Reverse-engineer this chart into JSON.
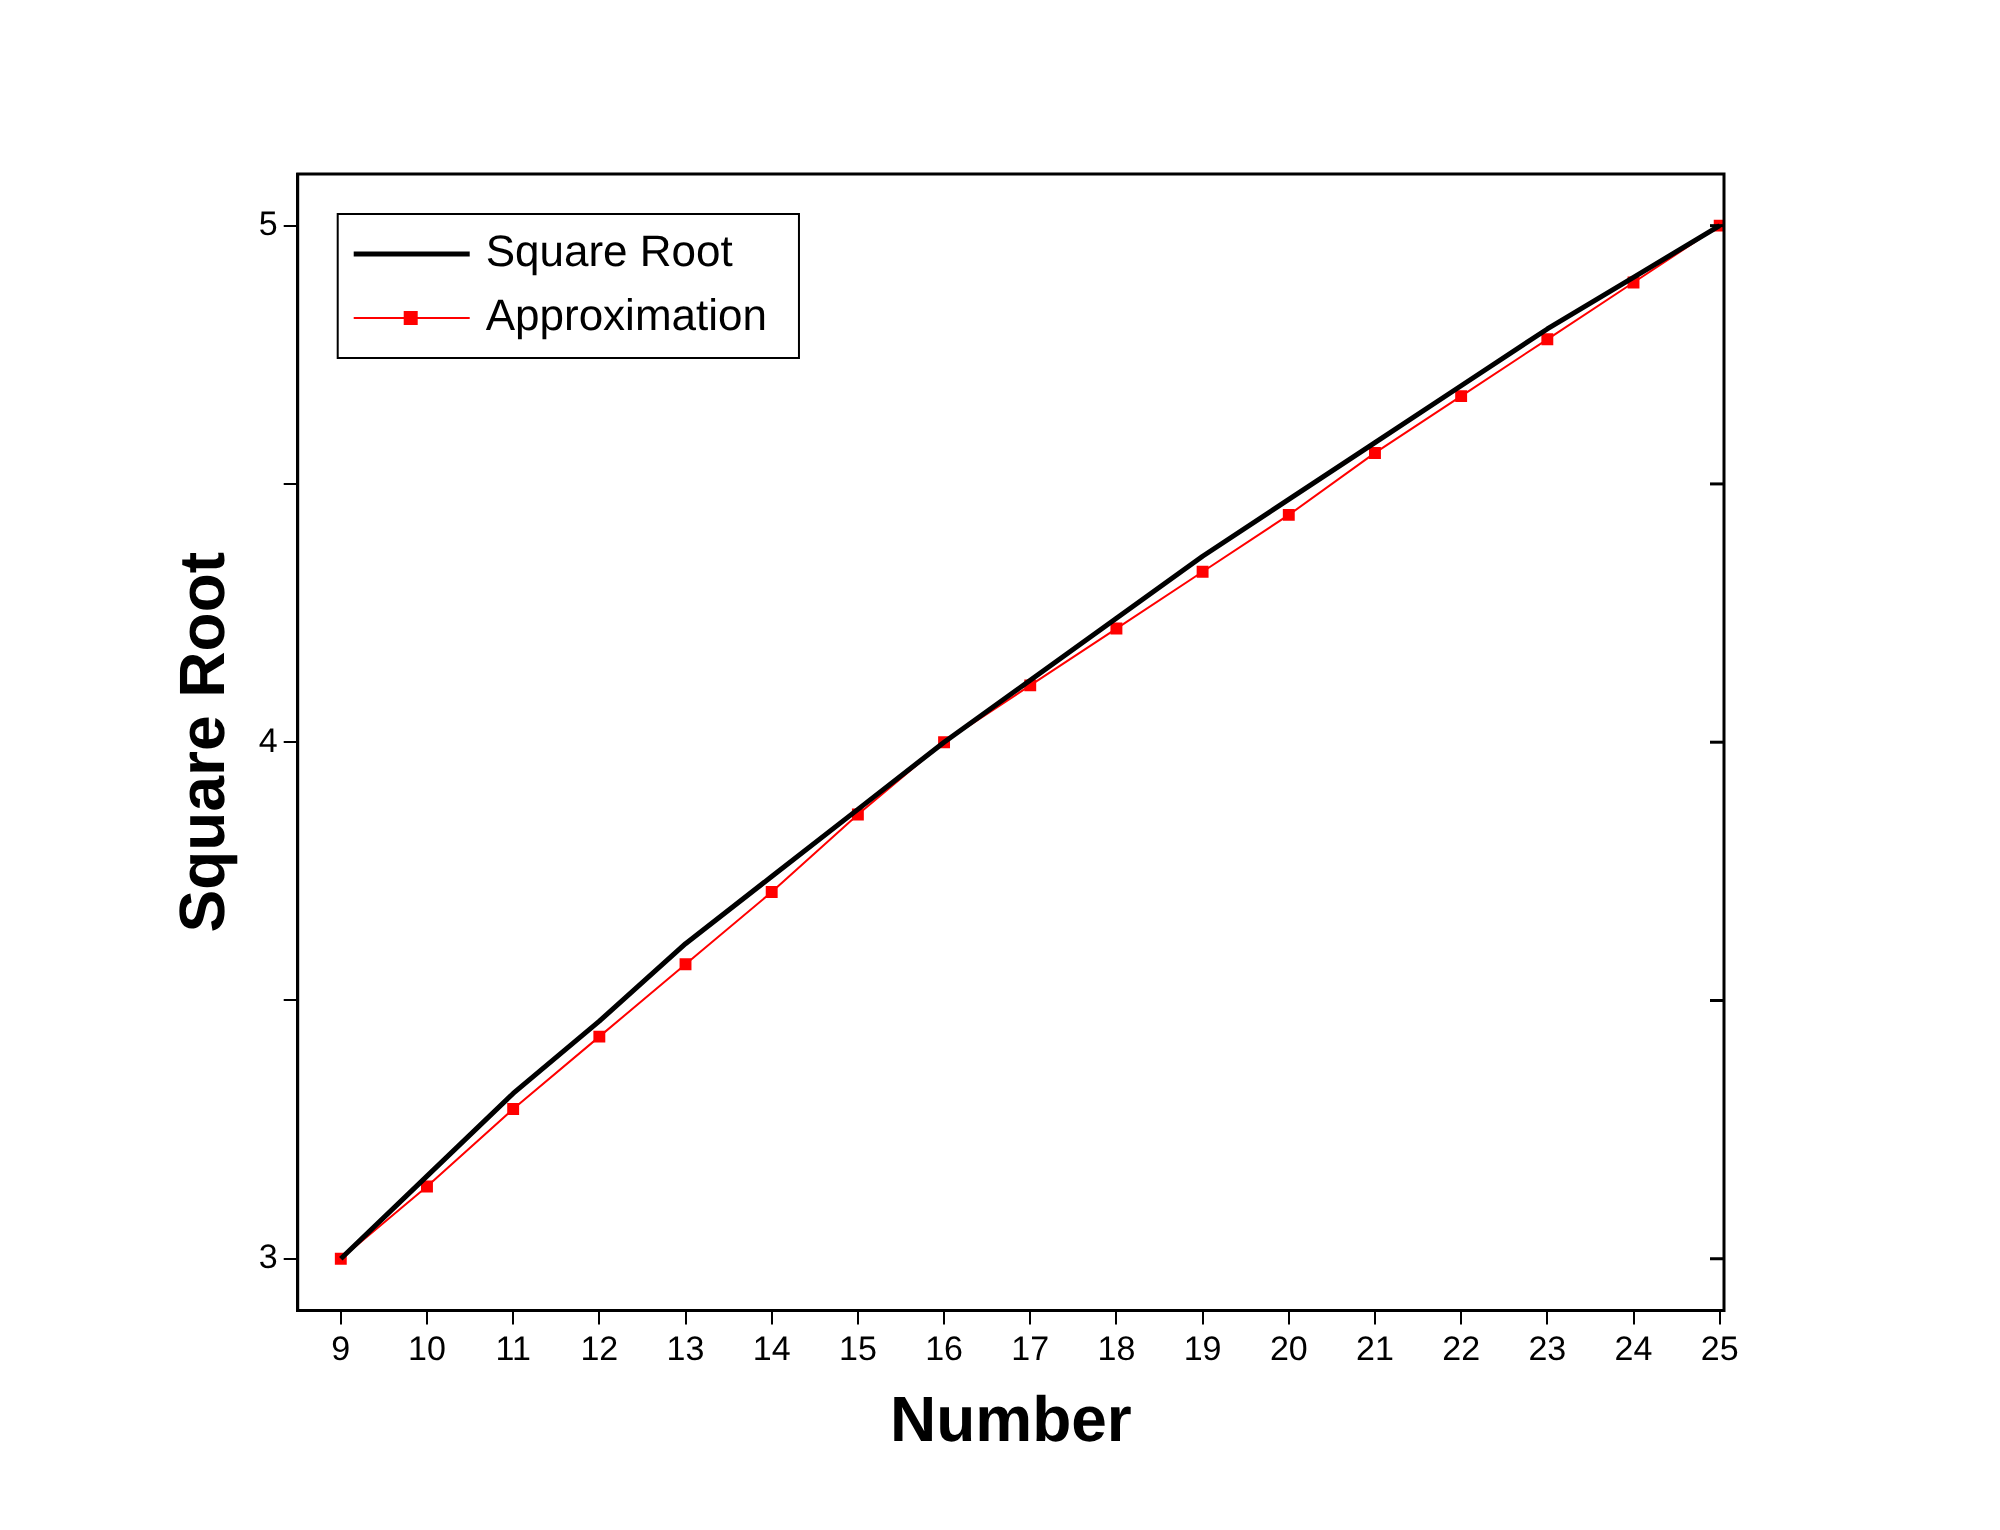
{
  "chart_data": {
    "type": "line",
    "xlabel": "Number",
    "ylabel": "Square Root",
    "x": [
      9,
      10,
      11,
      12,
      13,
      14,
      15,
      16,
      17,
      18,
      19,
      20,
      21,
      22,
      23,
      24,
      25
    ],
    "series": [
      {
        "name": "Square Root",
        "color": "#000000",
        "marker": "none",
        "values": [
          3,
          3.16,
          3.32,
          3.46,
          3.61,
          3.74,
          3.87,
          4,
          4.12,
          4.24,
          4.36,
          4.47,
          4.58,
          4.69,
          4.8,
          4.9,
          5
        ]
      },
      {
        "name": "Approximation",
        "color": "#ff0000",
        "marker": "square",
        "values": [
          3,
          3.14,
          3.29,
          3.43,
          3.57,
          3.71,
          3.86,
          4,
          4.11,
          4.22,
          4.33,
          4.44,
          4.56,
          4.67,
          4.78,
          4.89,
          5
        ]
      }
    ],
    "xlim": [
      8.5,
      25.05
    ],
    "xticks": [
      9,
      10,
      11,
      12,
      13,
      14,
      15,
      16,
      17,
      18,
      19,
      20,
      21,
      22,
      23,
      24,
      25
    ],
    "ylim": [
      2.9,
      5.1
    ],
    "yticks": [
      3,
      {
        "value": 3.5,
        "label": null
      },
      4,
      {
        "value": 4.5,
        "label": null
      },
      5
    ],
    "grid": false,
    "legend": "top left"
  }
}
